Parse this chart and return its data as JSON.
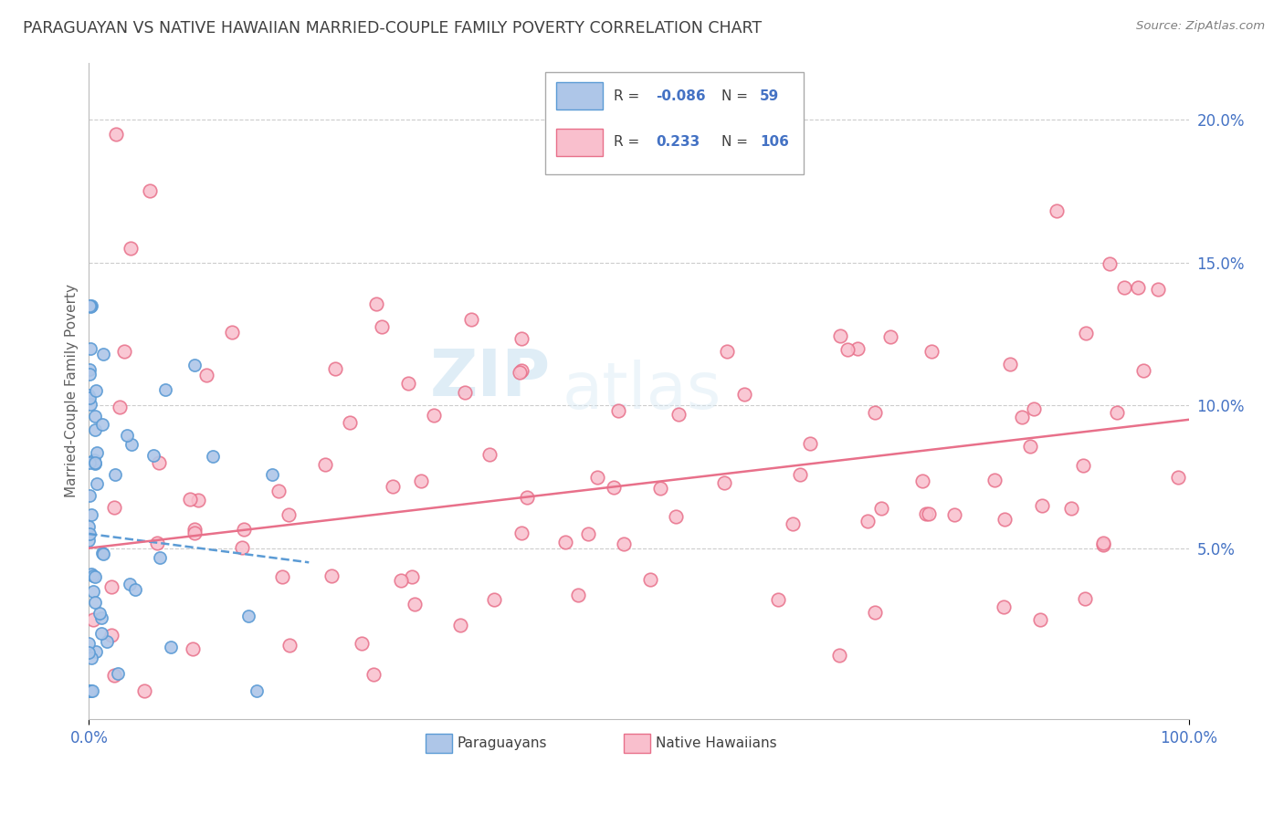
{
  "title": "PARAGUAYAN VS NATIVE HAWAIIAN MARRIED-COUPLE FAMILY POVERTY CORRELATION CHART",
  "source": "Source: ZipAtlas.com",
  "ylabel": "Married-Couple Family Poverty",
  "ytick_labels": [
    "",
    "5.0%",
    "10.0%",
    "15.0%",
    "20.0%"
  ],
  "yticks": [
    0.0,
    0.05,
    0.1,
    0.15,
    0.2
  ],
  "xlim": [
    0.0,
    1.0
  ],
  "ylim": [
    -0.01,
    0.22
  ],
  "watermark_zip": "ZIP",
  "watermark_atlas": "atlas",
  "blue_face": "#aec6e8",
  "blue_edge": "#5b9bd5",
  "pink_face": "#f9bfcd",
  "pink_edge": "#e8708a",
  "blue_line": "#5b9bd5",
  "pink_line": "#e8708a",
  "legend_blue_face": "#aec6e8",
  "legend_blue_edge": "#5b9bd5",
  "legend_pink_face": "#f9bfcd",
  "legend_pink_edge": "#e8708a",
  "r1_val": "-0.086",
  "n1_val": "59",
  "r2_val": "0.233",
  "n2_val": "106",
  "title_color": "#404040",
  "source_color": "#808080",
  "ytick_color": "#4472C4",
  "ylabel_color": "#606060",
  "xlabel_color": "#4472C4",
  "grid_color": "#cccccc",
  "legend_text_color": "#404040",
  "legend_val_color": "#4472C4"
}
